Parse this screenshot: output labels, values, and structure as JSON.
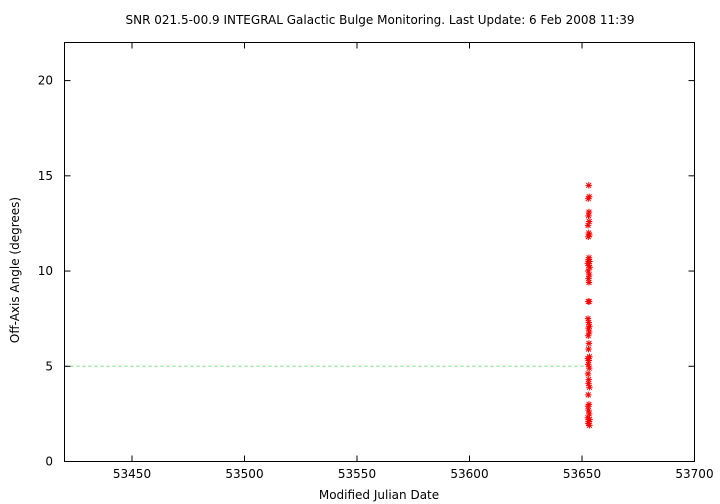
{
  "chart_data": {
    "type": "scatter",
    "title": "SNR 021.5-00.9   INTEGRAL Galactic Bulge Monitoring.  Last Update: 6 Feb 2008 11:39",
    "xlabel": "Modified Julian Date",
    "ylabel": "Off-Axis Angle (degrees)",
    "xlim": [
      53420,
      53700
    ],
    "ylim": [
      0,
      22
    ],
    "xticks": [
      53450,
      53500,
      53550,
      53600,
      53650,
      53700
    ],
    "yticks": [
      0,
      5,
      10,
      15,
      20
    ],
    "grid": false,
    "legend": "none",
    "reference_line": {
      "y": 5,
      "x_start": 53420,
      "x_end": 53652,
      "style": "dashed",
      "color": "#7fdc7f"
    },
    "marker": "asterisk",
    "marker_color": "#ff0000",
    "points": [
      {
        "x": 53653.0,
        "y": 14.5
      },
      {
        "x": 53653.2,
        "y": 13.9
      },
      {
        "x": 53652.8,
        "y": 13.8
      },
      {
        "x": 53653.1,
        "y": 13.1
      },
      {
        "x": 53652.9,
        "y": 12.9
      },
      {
        "x": 53653.2,
        "y": 12.6
      },
      {
        "x": 53652.7,
        "y": 12.4
      },
      {
        "x": 53653.0,
        "y": 12.0
      },
      {
        "x": 53653.3,
        "y": 11.9
      },
      {
        "x": 53652.8,
        "y": 11.8
      },
      {
        "x": 53653.1,
        "y": 10.7
      },
      {
        "x": 53652.9,
        "y": 10.6
      },
      {
        "x": 53653.3,
        "y": 10.5
      },
      {
        "x": 53652.6,
        "y": 10.4
      },
      {
        "x": 53653.0,
        "y": 10.3
      },
      {
        "x": 53653.4,
        "y": 10.2
      },
      {
        "x": 53652.8,
        "y": 10.0
      },
      {
        "x": 53653.2,
        "y": 9.8
      },
      {
        "x": 53652.9,
        "y": 9.6
      },
      {
        "x": 53653.1,
        "y": 9.4
      },
      {
        "x": 53652.8,
        "y": 8.4
      },
      {
        "x": 53653.2,
        "y": 8.4
      },
      {
        "x": 53652.7,
        "y": 7.5
      },
      {
        "x": 53653.0,
        "y": 7.3
      },
      {
        "x": 53653.3,
        "y": 7.1
      },
      {
        "x": 53652.9,
        "y": 7.0
      },
      {
        "x": 53653.2,
        "y": 6.8
      },
      {
        "x": 53652.8,
        "y": 6.6
      },
      {
        "x": 53653.1,
        "y": 6.2
      },
      {
        "x": 53652.9,
        "y": 5.9
      },
      {
        "x": 53653.3,
        "y": 5.5
      },
      {
        "x": 53652.6,
        "y": 5.4
      },
      {
        "x": 53653.0,
        "y": 5.3
      },
      {
        "x": 53652.8,
        "y": 5.1
      },
      {
        "x": 53653.2,
        "y": 4.9
      },
      {
        "x": 53652.7,
        "y": 4.6
      },
      {
        "x": 53653.0,
        "y": 4.3
      },
      {
        "x": 53652.9,
        "y": 4.1
      },
      {
        "x": 53653.3,
        "y": 3.9
      },
      {
        "x": 53652.8,
        "y": 3.5
      },
      {
        "x": 53653.1,
        "y": 3.0
      },
      {
        "x": 53652.7,
        "y": 2.9
      },
      {
        "x": 53652.9,
        "y": 2.7
      },
      {
        "x": 53653.2,
        "y": 2.5
      },
      {
        "x": 53652.6,
        "y": 2.3
      },
      {
        "x": 53653.4,
        "y": 2.2
      },
      {
        "x": 53653.0,
        "y": 2.1
      },
      {
        "x": 53652.8,
        "y": 2.0
      },
      {
        "x": 53653.3,
        "y": 1.9
      }
    ]
  }
}
